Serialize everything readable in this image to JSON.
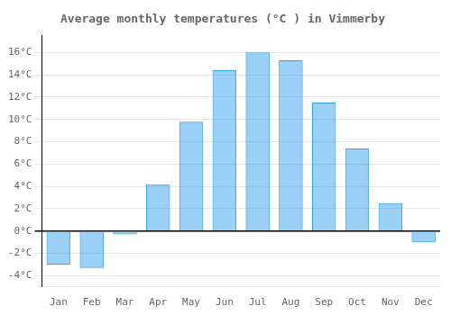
{
  "chart_data": {
    "type": "bar",
    "title": "Average monthly temperatures (°C ) in Vimmerby",
    "categories": [
      "Jan",
      "Feb",
      "Mar",
      "Apr",
      "May",
      "Jun",
      "Jul",
      "Aug",
      "Sep",
      "Oct",
      "Nov",
      "Dec"
    ],
    "values": [
      -3.0,
      -3.3,
      -0.3,
      4.2,
      9.8,
      14.4,
      16.0,
      15.3,
      11.5,
      7.4,
      2.5,
      -1.0
    ],
    "ylim": [
      -5,
      17.5
    ],
    "yticks": [
      {
        "value": -4,
        "label": "-4°C"
      },
      {
        "value": -2,
        "label": "-2°C"
      },
      {
        "value": 0,
        "label": "0°C"
      },
      {
        "value": 2,
        "label": "2°C"
      },
      {
        "value": 4,
        "label": "4°C"
      },
      {
        "value": 6,
        "label": "6°C"
      },
      {
        "value": 8,
        "label": "8°C"
      },
      {
        "value": 10,
        "label": "10°C"
      },
      {
        "value": 12,
        "label": "12°C"
      },
      {
        "value": 14,
        "label": "14°C"
      },
      {
        "value": 16,
        "label": "16°C"
      }
    ],
    "grid": true
  }
}
